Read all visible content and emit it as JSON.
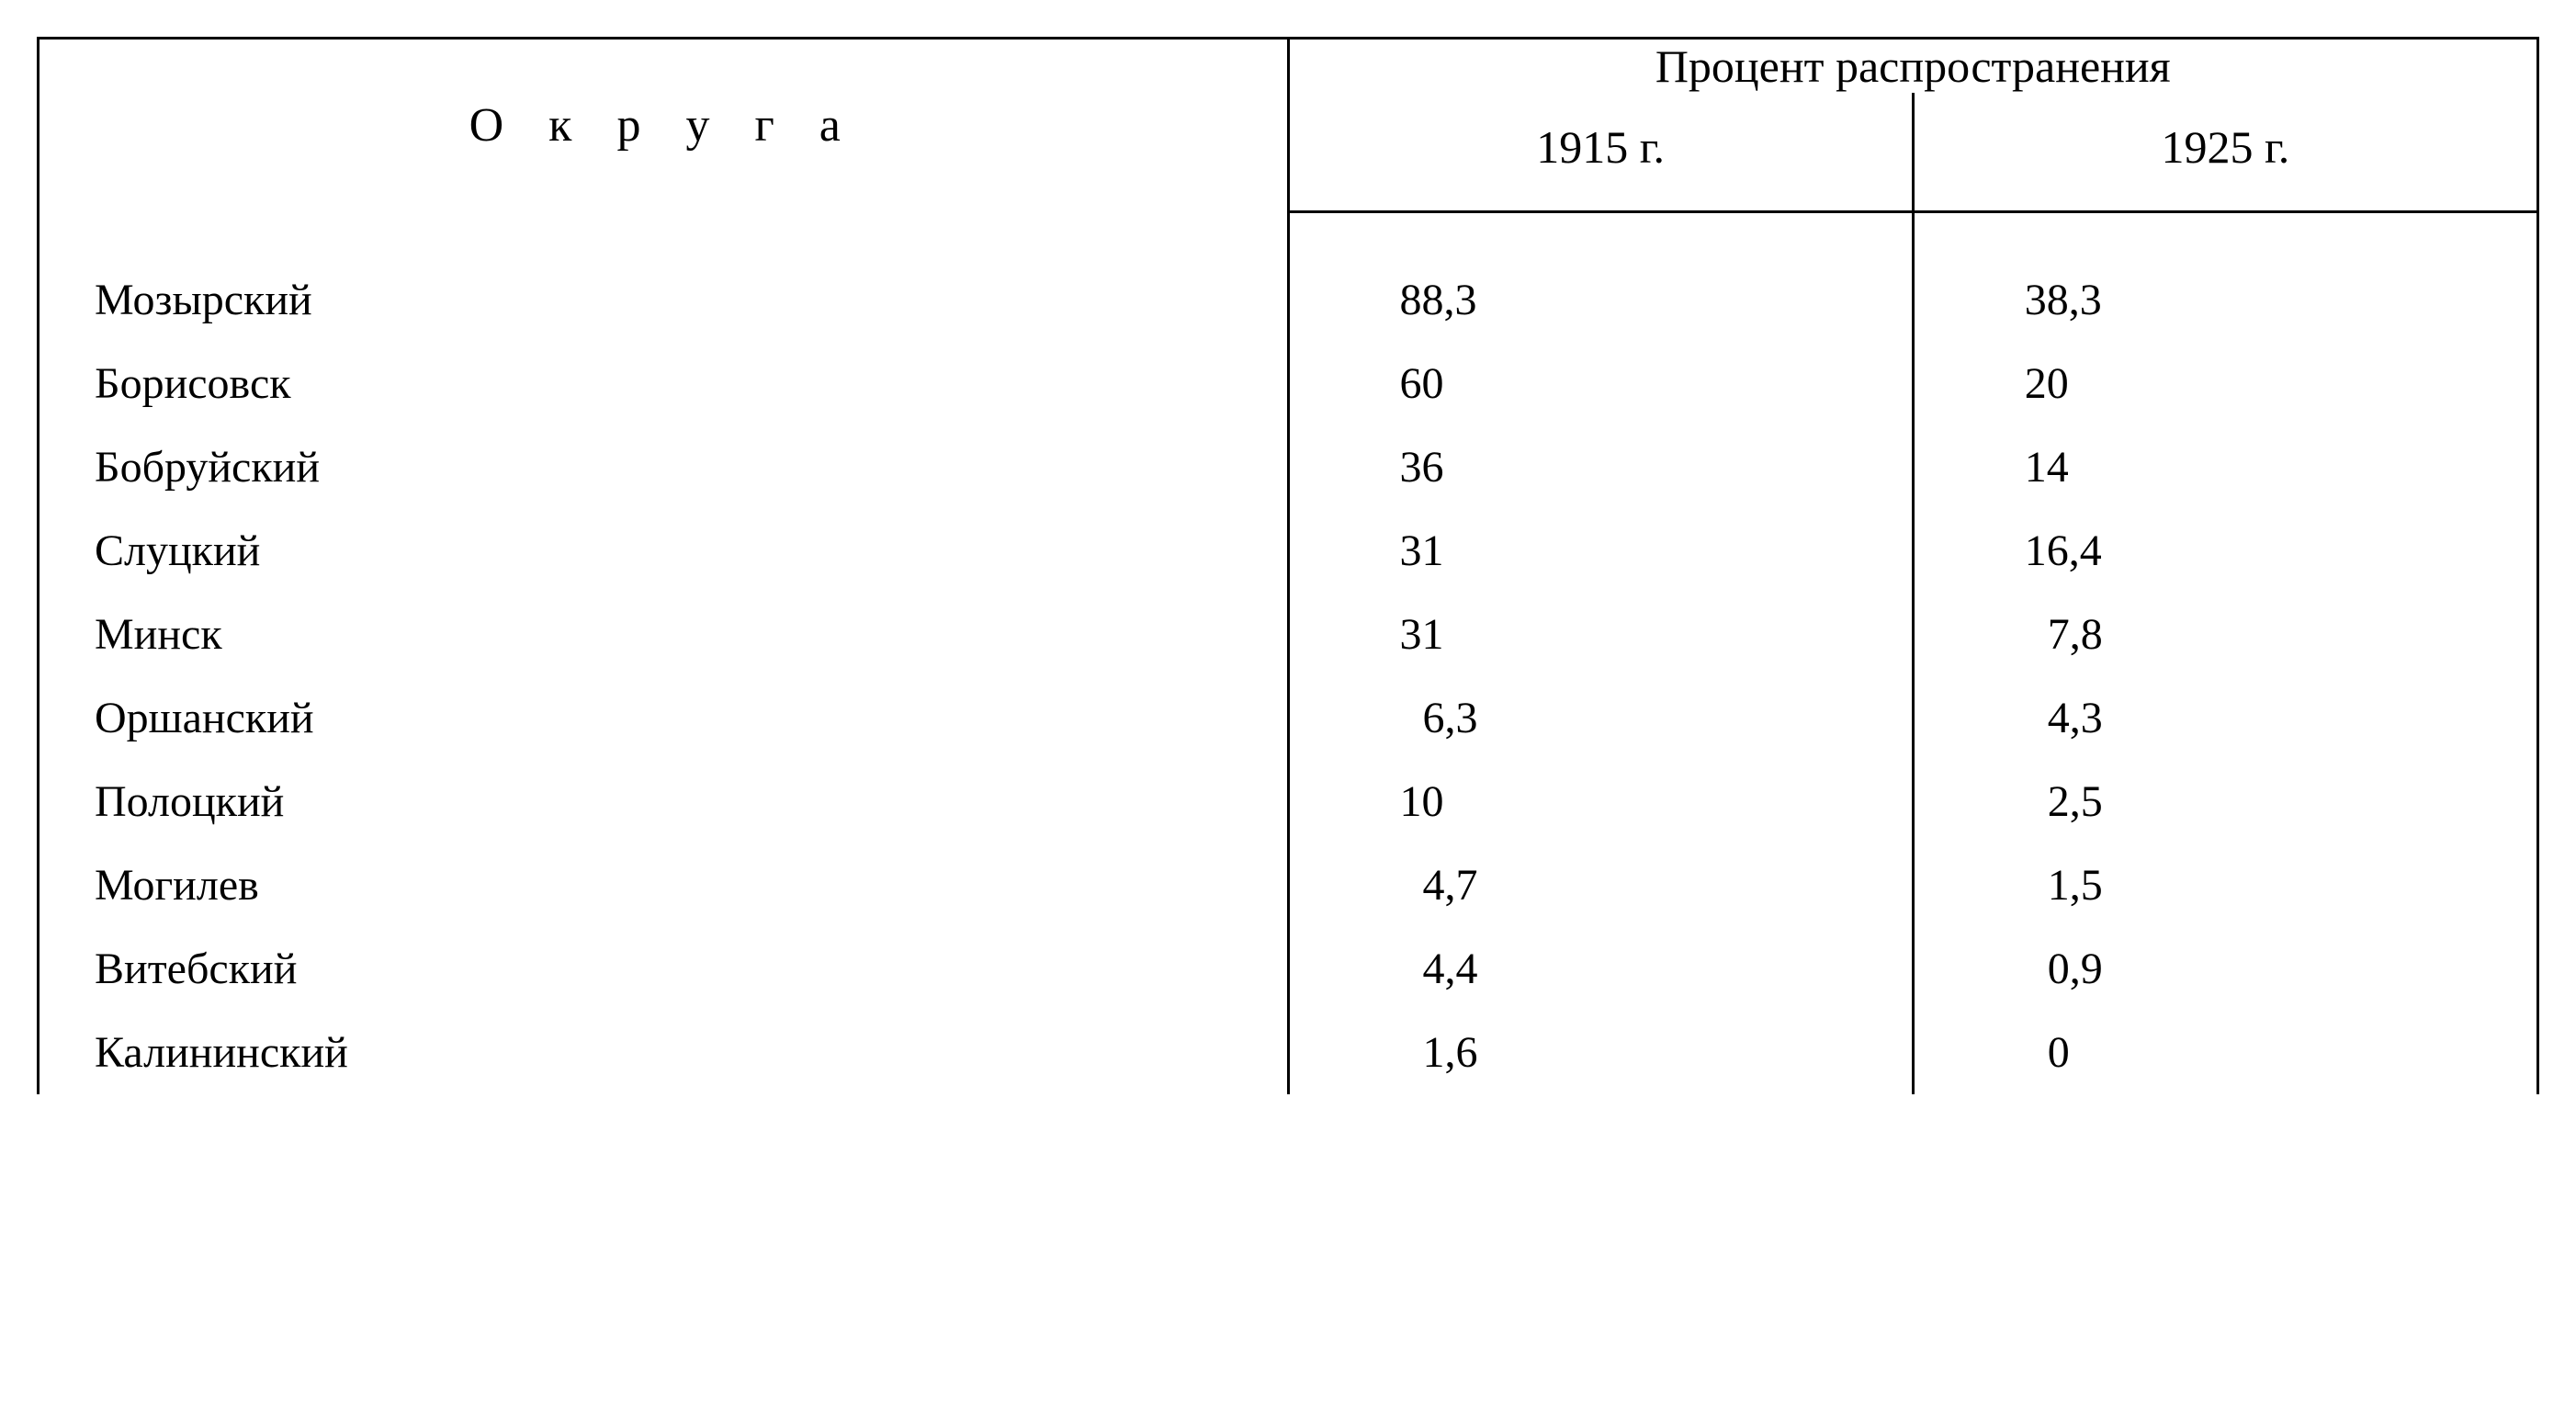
{
  "table": {
    "type": "table",
    "background_color": "#ffffff",
    "text_color": "#000000",
    "border_color": "#000000",
    "font_family": "Georgia, Times New Roman, serif",
    "font_size_header": 50,
    "font_size_body": 48,
    "district_header_letter_spacing": 18,
    "columns": {
      "district": "О к р у г а",
      "percent_group": "Процент распространения",
      "year_1915": "1915 г.",
      "year_1925": "1925 г."
    },
    "column_widths_percent": [
      50,
      25,
      25
    ],
    "rows": [
      {
        "district": "Мозырский",
        "y1915": "88,3",
        "y1925": "38,3",
        "indent1915": false,
        "indent1925": false
      },
      {
        "district": "Борисовск",
        "y1915": "60",
        "y1925": "20",
        "indent1915": false,
        "indent1925": false
      },
      {
        "district": "Бобруйский",
        "y1915": "36",
        "y1925": "14",
        "indent1915": false,
        "indent1925": false
      },
      {
        "district": "Слуцкий",
        "y1915": "31",
        "y1925": "16,4",
        "indent1915": false,
        "indent1925": false
      },
      {
        "district": "Минск",
        "y1915": "31",
        "y1925": "7,8",
        "indent1915": false,
        "indent1925": true
      },
      {
        "district": "Оршанский",
        "y1915": "6,3",
        "y1925": "4,3",
        "indent1915": true,
        "indent1925": true
      },
      {
        "district": "Полоцкий",
        "y1915": "10",
        "y1925": "2,5",
        "indent1915": false,
        "indent1925": true
      },
      {
        "district": "Могилев",
        "y1915": "4,7",
        "y1925": "1,5",
        "indent1915": true,
        "indent1925": true
      },
      {
        "district": "Витебский",
        "y1915": "4,4",
        "y1925": "0,9",
        "indent1915": true,
        "indent1925": true
      },
      {
        "district": "Калининский",
        "y1915": "1,6",
        "y1925": "0",
        "indent1915": true,
        "indent1925": true
      }
    ]
  }
}
